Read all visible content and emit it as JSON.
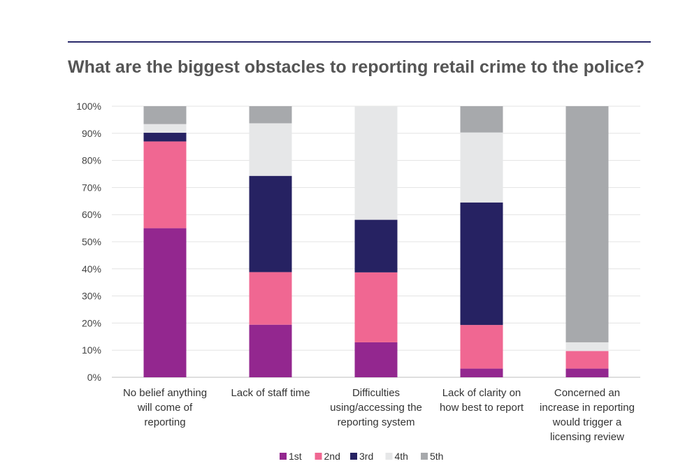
{
  "chart_data": {
    "type": "bar",
    "stacked": true,
    "title": "What are the biggest obstacles to reporting retail crime to the police?",
    "xlabel": "",
    "ylabel": "",
    "ylim": [
      0,
      100
    ],
    "yticks": [
      "0%",
      "10%",
      "20%",
      "30%",
      "40%",
      "50%",
      "60%",
      "70%",
      "80%",
      "90%",
      "100%"
    ],
    "categories": [
      [
        "No belief anything",
        "will come of",
        "reporting"
      ],
      [
        "Lack of staff time"
      ],
      [
        "Difficulties",
        "using/accessing the",
        "reporting system"
      ],
      [
        "Lack of clarity on",
        "how best to report"
      ],
      [
        "Concerned an",
        "increase in reporting",
        "would trigger a",
        "licensing review"
      ]
    ],
    "series": [
      {
        "name": "1st",
        "color": "#93278f",
        "values": [
          55,
          19.4,
          12.9,
          3.2,
          3.2
        ]
      },
      {
        "name": "2nd",
        "color": "#f06792",
        "values": [
          32,
          19.4,
          25.8,
          16.1,
          6.5
        ]
      },
      {
        "name": "3rd",
        "color": "#262262",
        "values": [
          3.2,
          35.5,
          19.4,
          45.2,
          0
        ]
      },
      {
        "name": "4th",
        "color": "#e6e7e8",
        "values": [
          3.2,
          19.4,
          41.9,
          25.8,
          3.2
        ]
      },
      {
        "name": "5th",
        "color": "#a7a9ac",
        "values": [
          6.6,
          6.3,
          0,
          9.7,
          87.1
        ]
      }
    ],
    "grid": true,
    "legend": "bottom-center"
  }
}
